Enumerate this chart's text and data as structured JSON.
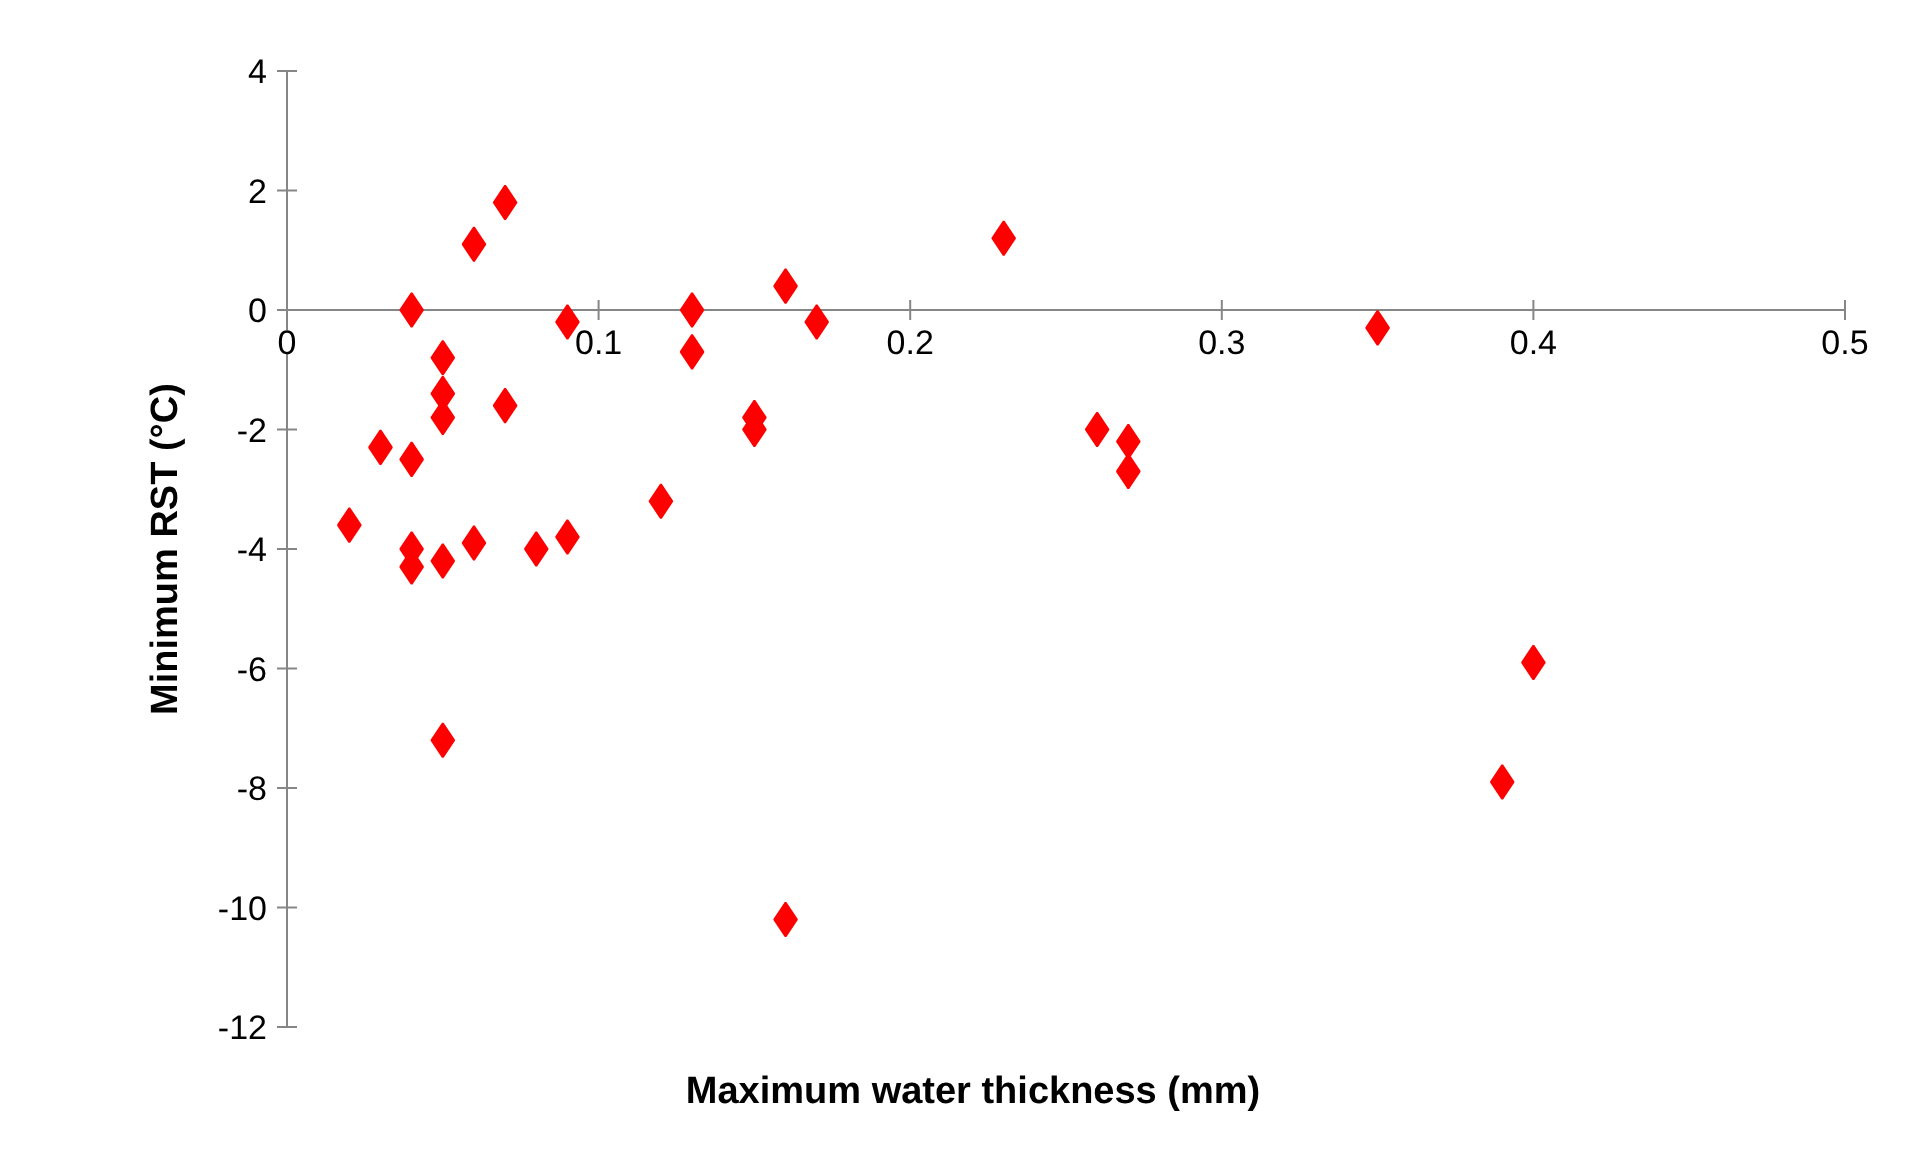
{
  "chart_data": {
    "type": "scatter",
    "xlabel": "Maximum water thickness (mm)",
    "ylabel": "Minimum RST (°C)",
    "x": [
      0.02,
      0.03,
      0.04,
      0.04,
      0.04,
      0.04,
      0.05,
      0.05,
      0.05,
      0.05,
      0.05,
      0.06,
      0.06,
      0.07,
      0.07,
      0.08,
      0.09,
      0.09,
      0.12,
      0.13,
      0.13,
      0.15,
      0.15,
      0.16,
      0.16,
      0.17,
      0.23,
      0.26,
      0.27,
      0.27,
      0.35,
      0.39,
      0.4
    ],
    "series": [
      {
        "color": "#ff0000",
        "values": [
          -3.6,
          -2.3,
          0,
          -2.5,
          -4.0,
          -4.3,
          -0.8,
          -1.4,
          -1.8,
          -4.2,
          -7.2,
          1.1,
          -3.9,
          1.8,
          -1.6,
          -4.0,
          -0.2,
          -3.8,
          -3.2,
          0,
          -0.7,
          -1.8,
          -2.0,
          0.4,
          -10.2,
          -0.2,
          1.2,
          -2.0,
          -2.2,
          -2.7,
          -0.3,
          -7.9,
          -5.9
        ]
      }
    ],
    "marker": "diamond",
    "xlim": [
      0,
      0.5
    ],
    "xticks": [
      0,
      0.1,
      0.2,
      0.3,
      0.4,
      0.5
    ],
    "ylim": [
      -12,
      4
    ],
    "yticks": [
      -12,
      -10,
      -8,
      -6,
      -4,
      -2,
      0,
      2,
      4
    ],
    "grid": false
  }
}
